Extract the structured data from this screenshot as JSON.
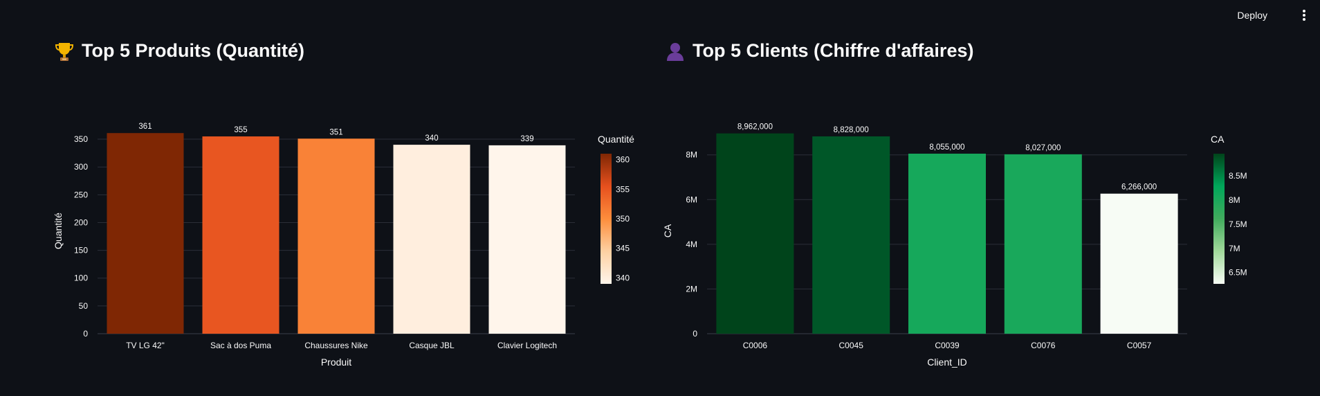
{
  "header": {
    "deploy_label": "Deploy"
  },
  "sections": [
    {
      "title": "Top 5 Produits (Quantité)",
      "icon": "trophy-icon"
    },
    {
      "title": "Top 5 Clients (Chiffre d'affaires)",
      "icon": "user-silhouette-icon"
    }
  ],
  "chart_data": [
    {
      "type": "bar",
      "categories": [
        "TV LG 42\"",
        "Sac à dos Puma",
        "Chaussures Nike",
        "Casque JBL",
        "Clavier Logitech"
      ],
      "values": [
        361,
        355,
        351,
        340,
        339
      ],
      "data_labels": [
        "361",
        "355",
        "351",
        "340",
        "339"
      ],
      "xlabel": "Produit",
      "ylabel": "Quantité",
      "ylim": [
        0,
        370
      ],
      "yticks": [
        0,
        50,
        100,
        150,
        200,
        250,
        300,
        350
      ],
      "ytick_labels": [
        "0",
        "50",
        "100",
        "150",
        "200",
        "250",
        "300",
        "350"
      ],
      "grid": true,
      "colorscale": "Oranges",
      "colorbar": {
        "title": "Quantité",
        "range": [
          339,
          361
        ],
        "ticks": [
          340,
          345,
          350,
          355,
          360
        ],
        "tick_labels": [
          "340",
          "345",
          "350",
          "355",
          "360"
        ],
        "colors": [
          "#fff5eb",
          "#fdd0a2",
          "#fd8d3c",
          "#e6501e",
          "#7f2704"
        ],
        "placement": "right"
      }
    },
    {
      "type": "bar",
      "categories": [
        "C0006",
        "C0045",
        "C0039",
        "C0076",
        "C0057"
      ],
      "values": [
        8962000,
        8828000,
        8055000,
        8027000,
        6266000
      ],
      "data_labels": [
        "8,962,000",
        "8,828,000",
        "8,055,000",
        "8,027,000",
        "6,266,000"
      ],
      "xlabel": "Client_ID",
      "ylabel": "CA",
      "ylim": [
        0,
        9200000
      ],
      "yticks": [
        0,
        2000000,
        4000000,
        6000000,
        8000000
      ],
      "ytick_labels": [
        "0",
        "2M",
        "4M",
        "6M",
        "8M"
      ],
      "grid": true,
      "colorscale": "Greens",
      "colorbar": {
        "title": "CA",
        "range": [
          6266000,
          8962000
        ],
        "ticks": [
          6500000,
          7000000,
          7500000,
          8000000,
          8500000
        ],
        "tick_labels": [
          "6.5M",
          "7M",
          "7.5M",
          "8M",
          "8.5M"
        ],
        "colors": [
          "#f7fcf5",
          "#a1d99b",
          "#41ab5d",
          "#00a65a",
          "#00441b"
        ],
        "placement": "right"
      }
    }
  ]
}
